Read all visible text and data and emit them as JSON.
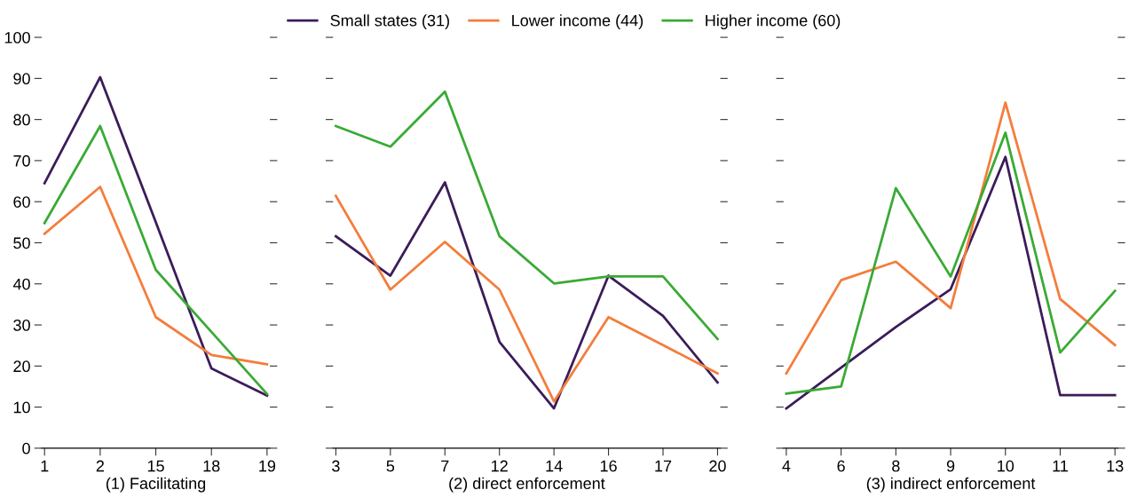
{
  "chart_data": [
    {
      "type": "line",
      "xlabel": "(1) Facilitating",
      "categories": [
        "1",
        "2",
        "15",
        "18",
        "19"
      ],
      "ylim": [
        0,
        100
      ],
      "yticks": [
        0,
        10,
        20,
        30,
        40,
        50,
        60,
        70,
        80,
        90,
        100
      ],
      "grid": false,
      "legend": "top",
      "marker": "none",
      "line_style": "solid",
      "series": [
        {
          "name": "Small states (31)",
          "color": "#3b1c5a",
          "values": [
            64.5,
            90.3,
            55,
            19.4,
            12.8
          ]
        },
        {
          "name": "Lower income (44)",
          "color": "#f47d3c",
          "values": [
            52.2,
            63.6,
            31.9,
            22.7,
            20.4
          ]
        },
        {
          "name": "Higher income (60)",
          "color": "#3aaa35",
          "values": [
            54.8,
            78.4,
            43.4,
            28.3,
            13.2
          ]
        }
      ]
    },
    {
      "type": "line",
      "xlabel": "(2) direct enforcement",
      "categories": [
        "3",
        "5",
        "7",
        "12",
        "14",
        "16",
        "17",
        "20"
      ],
      "ylim": [
        0,
        100
      ],
      "yticks": [
        0,
        10,
        20,
        30,
        40,
        50,
        60,
        70,
        80,
        90,
        100
      ],
      "tick_labels": "x",
      "grid": false,
      "marker": "none",
      "line_style": "solid",
      "series": [
        {
          "color": "#3b1c5a",
          "values": [
            51.6,
            42.0,
            64.7,
            25.9,
            9.7,
            42.0,
            32.2,
            16.0
          ]
        },
        {
          "color": "#f47d3c",
          "values": [
            61.4,
            38.6,
            50.2,
            38.6,
            11.4,
            31.9,
            25.1,
            18.2
          ]
        },
        {
          "color": "#3aaa35",
          "values": [
            78.4,
            73.4,
            86.8,
            51.6,
            40.1,
            41.8,
            41.8,
            26.6
          ]
        }
      ]
    },
    {
      "type": "line",
      "xlabel": "(3) indirect enforcement",
      "categories": [
        "4",
        "6",
        "8",
        "9",
        "10",
        "11",
        "13"
      ],
      "ylim": [
        0,
        100
      ],
      "yticks": [
        0,
        10,
        20,
        30,
        40,
        50,
        60,
        70,
        80,
        90,
        100
      ],
      "tick_labels": "x",
      "grid": false,
      "marker": "none",
      "line_style": "solid",
      "series": [
        {
          "color": "#3b1c5a",
          "values": [
            9.7,
            19.6,
            29.5,
            38.7,
            70.9,
            12.9,
            12.9
          ]
        },
        {
          "color": "#f47d3c",
          "values": [
            18.2,
            40.9,
            45.4,
            34.1,
            84.1,
            36.3,
            25.1
          ]
        },
        {
          "color": "#3aaa35",
          "values": [
            13.3,
            15.0,
            63.3,
            41.8,
            76.8,
            23.3,
            38.3
          ]
        }
      ]
    }
  ]
}
